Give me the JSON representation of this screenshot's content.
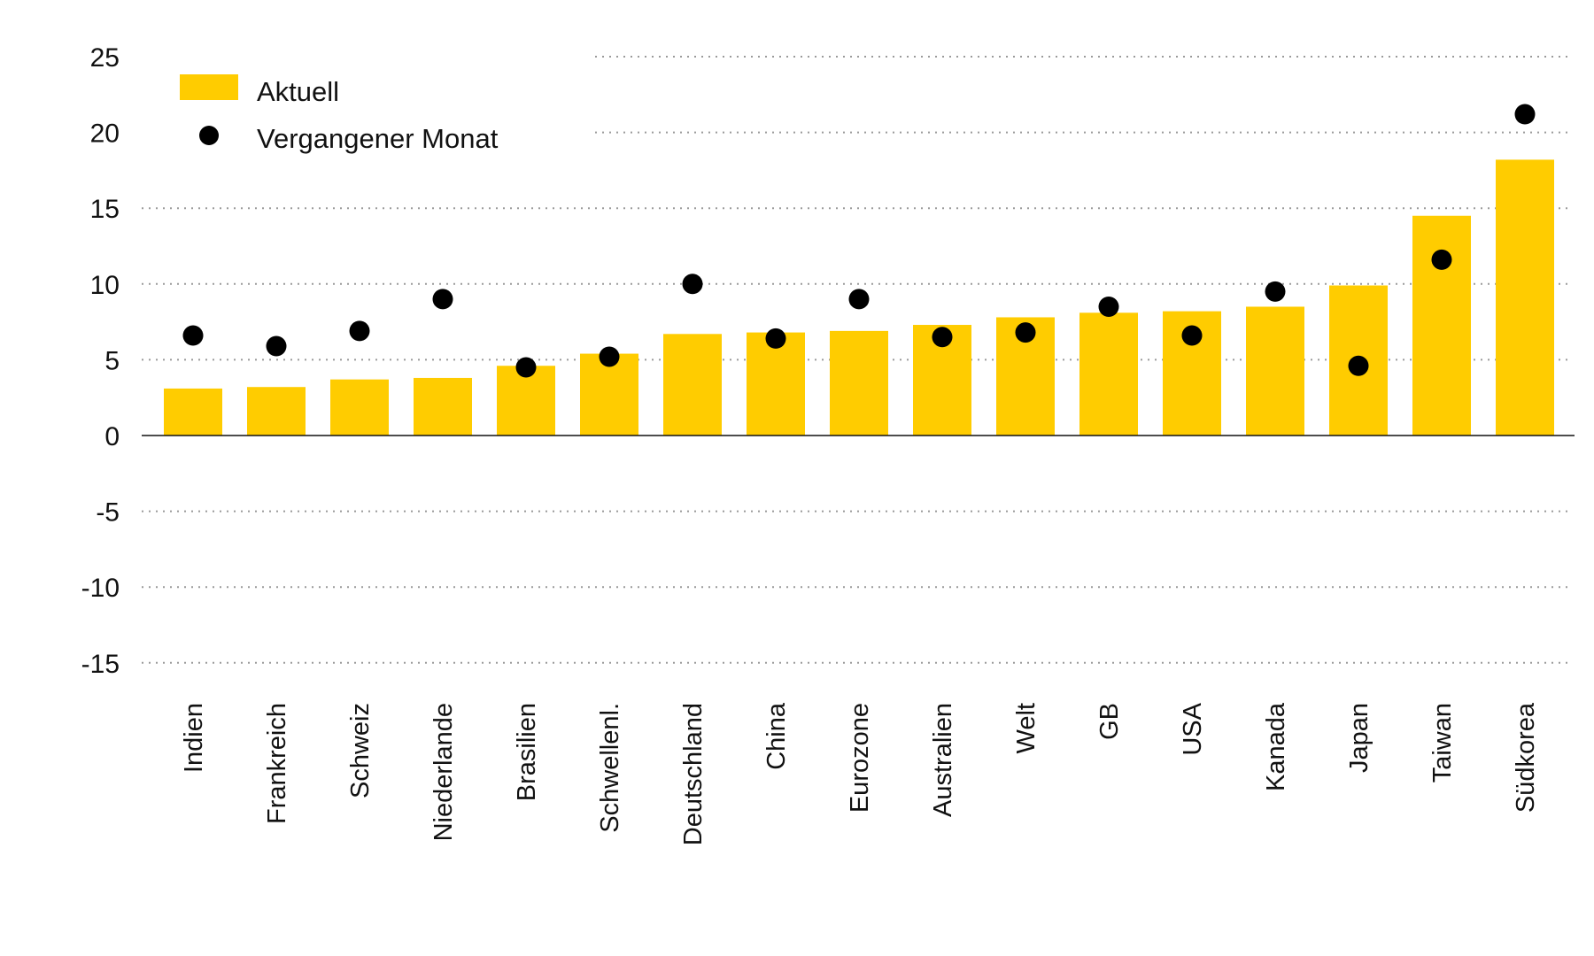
{
  "chart_data": {
    "type": "bar",
    "categories": [
      "Indien",
      "Frankreich",
      "Schweiz",
      "Niederlande",
      "Brasilien",
      "Schwellenl.",
      "Deutschland",
      "China",
      "Eurozone",
      "Australien",
      "Welt",
      "GB",
      "USA",
      "Kanada",
      "Japan",
      "Taiwan",
      "Südkorea"
    ],
    "series": [
      {
        "name": "Aktuell",
        "type": "bar",
        "color": "#FFCC00",
        "values": [
          3.1,
          3.2,
          3.7,
          3.8,
          4.6,
          5.4,
          6.7,
          6.8,
          6.9,
          7.3,
          7.8,
          8.1,
          8.2,
          8.5,
          9.9,
          14.5,
          18.2
        ]
      },
      {
        "name": "Vergangener Monat",
        "type": "scatter",
        "color": "#000000",
        "values": [
          6.6,
          5.9,
          6.9,
          9.0,
          4.5,
          5.2,
          10.0,
          6.4,
          9.0,
          6.5,
          6.8,
          8.5,
          6.6,
          9.5,
          4.6,
          11.6,
          21.2
        ]
      }
    ],
    "yticks": [
      25,
      20,
      15,
      10,
      5,
      0,
      -5,
      -10,
      -15
    ],
    "ylim": [
      -15,
      25
    ],
    "title": "",
    "xlabel": "",
    "ylabel": "",
    "grid": "dotted horizontal",
    "legend": "top-left"
  }
}
